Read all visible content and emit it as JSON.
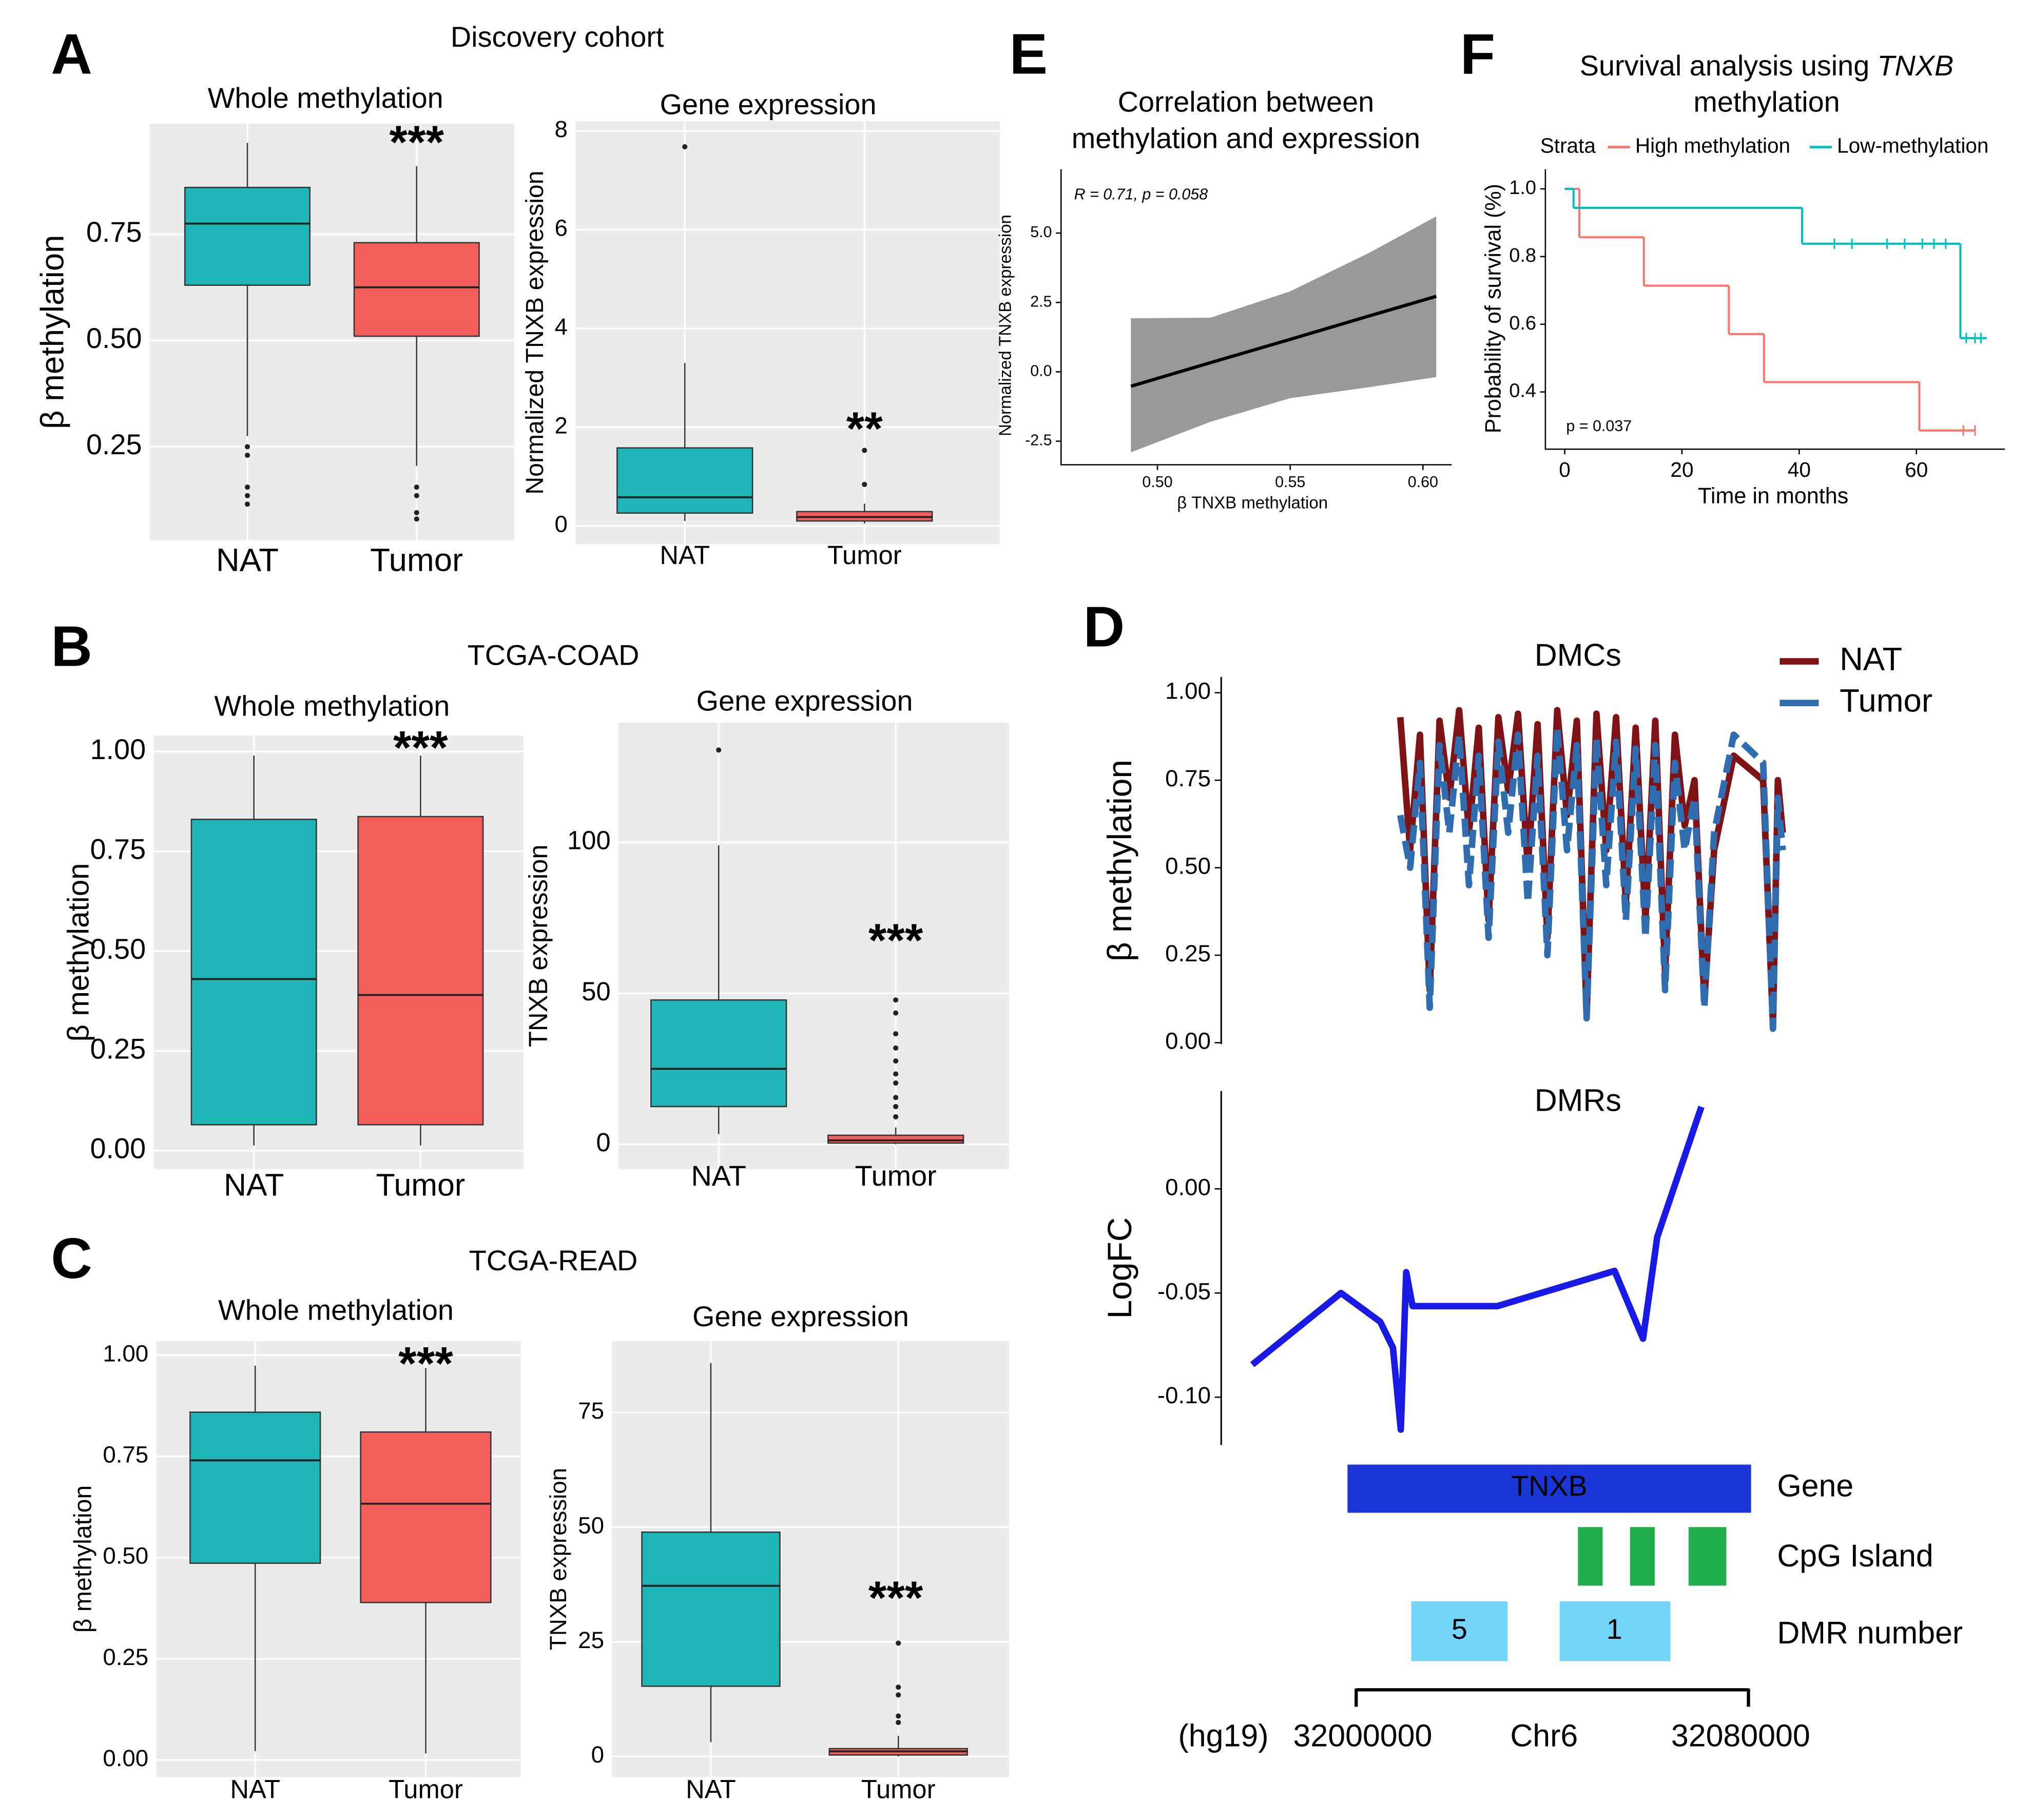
{
  "chart_data": [
    {
      "type": "box",
      "panel_label": "A",
      "group_title": "Discovery cohort",
      "title": "Whole methylation",
      "ylabel": "β methylation",
      "categories": [
        "NAT",
        "Tumor"
      ],
      "colors": [
        "#1fb5b6",
        "#f35e5a"
      ],
      "stats": [
        {
          "whislo": 0.275,
          "q1": 0.63,
          "med": 0.775,
          "q3": 0.86,
          "whishi": 0.965,
          "fliers": [
            0.25,
            0.23,
            0.155,
            0.135,
            0.115
          ]
        },
        {
          "whislo": 0.205,
          "q1": 0.51,
          "med": 0.625,
          "q3": 0.73,
          "whishi": 0.91,
          "fliers": [
            0.155,
            0.135,
            0.095,
            0.08
          ]
        }
      ],
      "significance": "***",
      "ylim": [
        0.03,
        1.01
      ],
      "yticks": [
        0.25,
        {
          "value": 0.5,
          "label": "0.50"
        },
        0.75
      ]
    },
    {
      "type": "box",
      "title": "Gene expression",
      "ylabel": "Normalized TNXB expression",
      "categories": [
        "NAT",
        "Tumor"
      ],
      "colors": [
        "#1fb5b6",
        "#f35e5a"
      ],
      "stats": [
        {
          "whislo": 0.1,
          "q1": 0.26,
          "med": 0.58,
          "q3": 1.58,
          "whishi": 3.3,
          "fliers": [
            7.68
          ]
        },
        {
          "whislo": 0.05,
          "q1": 0.1,
          "med": 0.18,
          "q3": 0.29,
          "whishi": 0.45,
          "fliers": [
            0.84,
            1.53
          ]
        }
      ],
      "significance": "**",
      "ylim": [
        -0.37,
        8.2
      ],
      "yticks": [
        0,
        2,
        4,
        6,
        8
      ]
    },
    {
      "type": "box",
      "panel_label": "B",
      "group_title": "TCGA-COAD",
      "title": "Whole methylation",
      "ylabel": "β methylation",
      "categories": [
        "NAT",
        "Tumor"
      ],
      "colors": [
        "#1fb5b6",
        "#f35e5a"
      ],
      "stats": [
        {
          "whislo": 0.013,
          "q1": 0.065,
          "med": 0.43,
          "q3": 0.83,
          "whishi": 0.99,
          "fliers": []
        },
        {
          "whislo": 0.013,
          "q1": 0.065,
          "med": 0.39,
          "q3": 0.837,
          "whishi": 0.99,
          "fliers": []
        }
      ],
      "significance": "***",
      "ylim": [
        -0.046,
        1.04
      ],
      "yticks": [
        {
          "value": 0,
          "label": "0.00"
        },
        0.25,
        {
          "value": 0.5,
          "label": "0.50"
        },
        0.75,
        {
          "value": 1,
          "label": "1.00"
        }
      ]
    },
    {
      "type": "box",
      "title": "Gene expression",
      "ylabel": "TNXB expression",
      "categories": [
        "NAT",
        "Tumor"
      ],
      "colors": [
        "#1fb5b6",
        "#f35e5a"
      ],
      "stats": [
        {
          "whislo": 3.4,
          "q1": 12.5,
          "med": 25,
          "q3": 47.8,
          "whishi": 99,
          "fliers": [
            130.6
          ]
        },
        {
          "whislo": 0,
          "q1": 0.4,
          "med": 1.3,
          "q3": 3,
          "whishi": 5.6,
          "fliers": [
            47.8,
            43.5,
            36.6,
            31.9,
            27.6,
            23.3,
            20.3,
            15.5,
            12.5,
            9.1
          ]
        }
      ],
      "significance": "***",
      "ylim": [
        -8.2,
        139.7
      ],
      "yticks": [
        0,
        50,
        100
      ]
    },
    {
      "type": "box",
      "panel_label": "C",
      "group_title": "TCGA-READ",
      "title": "Whole methylation",
      "ylabel": "β methylation",
      "categories": [
        "NAT",
        "Tumor"
      ],
      "colors": [
        "#1fb5b6",
        "#f35e5a"
      ],
      "stats": [
        {
          "whislo": 0.022,
          "q1": 0.486,
          "med": 0.74,
          "q3": 0.859,
          "whishi": 0.974,
          "fliers": []
        },
        {
          "whislo": 0.016,
          "q1": 0.389,
          "med": 0.633,
          "q3": 0.81,
          "whishi": 0.968,
          "fliers": []
        }
      ],
      "significance": "***",
      "ylim": [
        -0.042,
        1.035
      ],
      "yticks": [
        {
          "value": 0,
          "label": "0.00"
        },
        0.25,
        {
          "value": 0.5,
          "label": "0.50"
        },
        0.75,
        {
          "value": 1,
          "label": "1.00"
        }
      ]
    },
    {
      "type": "box",
      "title": "Gene expression",
      "ylabel": "TNXB expression",
      "categories": [
        "NAT",
        "Tumor"
      ],
      "colors": [
        "#1fb5b6",
        "#f35e5a"
      ],
      "stats": [
        {
          "whislo": 3.1,
          "q1": 15.3,
          "med": 37.2,
          "q3": 48.9,
          "whishi": 85.8,
          "fliers": []
        },
        {
          "whislo": 0,
          "q1": 0.3,
          "med": 1.1,
          "q3": 1.7,
          "whishi": 4.5,
          "fliers": [
            24.7,
            15.1,
            13.4,
            8.8,
            7.4
          ]
        }
      ],
      "significance": "***",
      "ylim": [
        -4.5,
        90.6
      ],
      "yticks": [
        0,
        25,
        50,
        75
      ]
    },
    {
      "type": "regression",
      "panel_label": "E",
      "title": [
        "Correlation between",
        "methylation and expression"
      ],
      "xlabel": "β TNXB methylation",
      "ylabel": "Normalized TNXB expression",
      "annotation": "R = 0.71, p = 0.058",
      "x": [
        0.49,
        0.52,
        0.55,
        0.58,
        0.605
      ],
      "values": [
        -0.52,
        0.33,
        1.17,
        2.02,
        2.72
      ],
      "lower": [
        -2.9,
        -1.8,
        -0.95,
        -0.55,
        -0.19
      ],
      "upper": [
        1.93,
        1.95,
        2.9,
        4.3,
        5.6
      ],
      "color": "#000000",
      "band_color": "#999999",
      "xlim": [
        0.4637,
        0.6108
      ],
      "xticks": [
        {
          "value": 0.5,
          "label": "0.50"
        },
        0.55,
        {
          "value": 0.6,
          "label": "0.60"
        }
      ],
      "ylim": [
        -3.35,
        7.3
      ],
      "yticks": [
        -2.5,
        {
          "value": 0,
          "label": "0.0"
        },
        2.5,
        {
          "value": 5,
          "label": "5.0"
        }
      ]
    },
    {
      "type": "survival",
      "panel_label": "F",
      "title": [
        "Survival analysis using",
        "TNXB",
        "methylation"
      ],
      "legend_title": "Strata",
      "xlabel": "Time in months",
      "ylabel": "Probability of survival (%)",
      "annotation": "p = 0.037",
      "series": [
        {
          "name": "High methylation",
          "color": "#f8766d",
          "x": [
            0,
            2.5,
            13.5,
            28,
            34,
            60.5,
            70
          ],
          "values": [
            1,
            0.857,
            0.714,
            0.571,
            0.429,
            0.286,
            0.286
          ],
          "censored": [
            68,
            70
          ]
        },
        {
          "name": "Low-methylation",
          "color": "#00bfc4",
          "x": [
            0,
            1.5,
            40.5,
            67.5,
            72
          ],
          "values": [
            1,
            0.944,
            0.838,
            0.559,
            0.559
          ],
          "censored": [
            46,
            49,
            55,
            58,
            61,
            63,
            65,
            68.5,
            70,
            71
          ]
        }
      ],
      "xlim": [
        -3.3,
        75.1
      ],
      "xticks": [
        0,
        20,
        40,
        60
      ],
      "ylim": [
        0.231,
        1.058
      ],
      "yticks": [
        0.4,
        0.6,
        0.8,
        {
          "value": 1,
          "label": "1.0"
        }
      ]
    },
    {
      "type": "line",
      "panel_label": "D",
      "title": "DMCs",
      "ylabel": "β methylation",
      "x": [
        32009000,
        32011000,
        32013000,
        32015000,
        32017000,
        32019000,
        32021000,
        32023000,
        32025000,
        32027000,
        32029000,
        32031000,
        32033000,
        32035000,
        32037000,
        32039000,
        32041000,
        32043000,
        32045000,
        32047000,
        32049000,
        32051000,
        32053000,
        32055000,
        32057000,
        32059000,
        32061000,
        32063000,
        32065000,
        32067000,
        32069000,
        32071000,
        32073000,
        32077000,
        32083000,
        32085000,
        32086000,
        32087000
      ],
      "series": [
        {
          "name": "NAT",
          "color": "#7f1215",
          "values": [
            0.93,
            0.55,
            0.88,
            0.15,
            0.92,
            0.7,
            0.95,
            0.6,
            0.9,
            0.35,
            0.93,
            0.72,
            0.94,
            0.5,
            0.91,
            0.3,
            0.95,
            0.65,
            0.92,
            0.08,
            0.94,
            0.55,
            0.93,
            0.4,
            0.9,
            0.35,
            0.92,
            0.2,
            0.88,
            0.62,
            0.75,
            0.12,
            0.55,
            0.82,
            0.75,
            0.05,
            0.75,
            0.6
          ]
        },
        {
          "name": "Tumor",
          "color": "#2f6db0",
          "dashed": true,
          "values": [
            0.65,
            0.5,
            0.8,
            0.1,
            0.85,
            0.6,
            0.88,
            0.45,
            0.82,
            0.3,
            0.86,
            0.6,
            0.88,
            0.4,
            0.82,
            0.25,
            0.9,
            0.55,
            0.85,
            0.07,
            0.87,
            0.45,
            0.86,
            0.35,
            0.84,
            0.3,
            0.85,
            0.15,
            0.8,
            0.55,
            0.7,
            0.1,
            0.6,
            0.88,
            0.8,
            0.04,
            0.7,
            0.55
          ]
        }
      ],
      "xlim": [
        31973000,
        32088500
      ],
      "ylim": [
        -0.004,
        1.045
      ],
      "yticks": [
        {
          "value": 0,
          "label": "0.00"
        },
        0.25,
        {
          "value": 0.5,
          "label": "0.50"
        },
        0.75,
        {
          "value": 1,
          "label": "1.00"
        }
      ]
    },
    {
      "type": "line",
      "title": "DMRs",
      "ylabel": "LogFC",
      "x": [
        31978800,
        31996900,
        32004900,
        32007500,
        32009100,
        32010200,
        32011500,
        32028800,
        32052700,
        32058500,
        32061400,
        32070400
      ],
      "series": [
        {
          "color": "#1a1ae6",
          "values": [
            -0.0844,
            -0.05,
            -0.0638,
            -0.0763,
            -0.1156,
            -0.04,
            -0.0563,
            -0.0563,
            -0.0394,
            -0.0719,
            -0.0231,
            0.0394
          ]
        }
      ],
      "xlim": [
        31973000,
        32088500
      ],
      "ylim": [
        -0.123,
        0.047
      ],
      "yticks": [
        {
          "value": 0,
          "label": "0.00"
        },
        {
          "value": -0.05,
          "label": "-0.05"
        },
        {
          "value": -0.1,
          "label": "-0.10"
        }
      ]
    },
    {
      "type": "tracks",
      "rows": [
        "Gene",
        "CpG Island",
        "DMR number"
      ],
      "gene": "TNXB",
      "dmr_numbers": [
        5,
        1
      ],
      "assembly": "(hg19)",
      "chromosome": "Chr6",
      "xlim": [
        31973000,
        32088500
      ],
      "xticks": [
        32000000,
        32080000
      ]
    }
  ]
}
